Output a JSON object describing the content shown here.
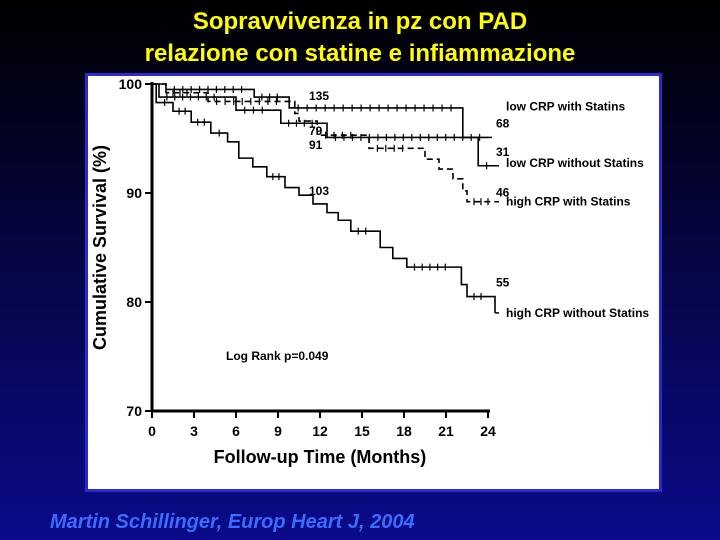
{
  "slide": {
    "title_line1": "Sopravvivenza in pz con PAD",
    "title_line2": "relazione con statine e infiammazione",
    "citation": "Martin Schillinger, Europ Heart J, 2004"
  },
  "colors": {
    "title": "#ffff00",
    "citation": "#3a6cff",
    "panel_border": "#2a2acf"
  },
  "chart_data": {
    "type": "line",
    "title": "",
    "xlabel": "Follow-up Time (Months)",
    "ylabel": "Cumulative Survival (%)",
    "xlim": [
      0,
      24
    ],
    "ylim": [
      70,
      100
    ],
    "xticks": [
      0,
      3,
      6,
      9,
      12,
      15,
      18,
      21,
      24
    ],
    "yticks": [
      70,
      80,
      90,
      100
    ],
    "annotation": "Log Rank p=0.049",
    "series": [
      {
        "name": "low CRP with Statins",
        "style": "solid",
        "at_risk_labels": [
          {
            "x": 12,
            "text": "135"
          },
          {
            "x": 24,
            "text": "68"
          }
        ],
        "points": [
          [
            0,
            100
          ],
          [
            1,
            99.5
          ],
          [
            7,
            99.5
          ],
          [
            7.3,
            98.8
          ],
          [
            9.5,
            98.8
          ],
          [
            9.8,
            97.8
          ],
          [
            22,
            97.8
          ],
          [
            22.2,
            95.1
          ],
          [
            24,
            95.1
          ]
        ]
      },
      {
        "name": "low CRP without Statins",
        "style": "solid",
        "at_risk_labels": [
          {
            "x": 12,
            "text": "79"
          },
          {
            "x": 24,
            "text": "31"
          }
        ],
        "points": [
          [
            0,
            100
          ],
          [
            0.5,
            98.8
          ],
          [
            5,
            98.8
          ],
          [
            6,
            97.6
          ],
          [
            8.5,
            97.6
          ],
          [
            9.2,
            96.4
          ],
          [
            12,
            96.4
          ],
          [
            12.5,
            95.1
          ],
          [
            22.8,
            95.1
          ],
          [
            23.3,
            92.5
          ],
          [
            24.5,
            92.5
          ]
        ]
      },
      {
        "name": "high CRP with Statins",
        "style": "dashed",
        "at_risk_labels": [
          {
            "x": 12,
            "text": "91"
          },
          {
            "x": 24,
            "text": "46"
          }
        ],
        "points": [
          [
            0,
            100
          ],
          [
            1,
            99.2
          ],
          [
            3,
            99.2
          ],
          [
            4,
            98.4
          ],
          [
            9.5,
            98.4
          ],
          [
            10.2,
            97.3
          ],
          [
            10.5,
            96.6
          ],
          [
            11.5,
            96.6
          ],
          [
            11.8,
            95.3
          ],
          [
            14.8,
            95.3
          ],
          [
            15.5,
            94.1
          ],
          [
            18.5,
            94.1
          ],
          [
            19.5,
            93.1
          ],
          [
            20.5,
            92.2
          ],
          [
            21.5,
            91.3
          ],
          [
            22.2,
            90.2
          ],
          [
            22.5,
            89.2
          ],
          [
            24.5,
            89.2
          ]
        ]
      },
      {
        "name": "high CRP without Statins",
        "style": "solid",
        "at_risk_labels": [
          {
            "x": 12,
            "text": "103"
          },
          {
            "x": 24,
            "text": "55"
          }
        ],
        "points": [
          [
            0,
            100
          ],
          [
            0.3,
            98.3
          ],
          [
            1.5,
            97.5
          ],
          [
            2.8,
            96.5
          ],
          [
            4.2,
            95.5
          ],
          [
            5.4,
            94.7
          ],
          [
            6.2,
            93.2
          ],
          [
            7.2,
            92.4
          ],
          [
            8.2,
            91.5
          ],
          [
            9.5,
            90.5
          ],
          [
            10.5,
            89.8
          ],
          [
            11.5,
            89
          ],
          [
            12.5,
            88.2
          ],
          [
            13.3,
            87.5
          ],
          [
            14.2,
            86.5
          ],
          [
            15.8,
            86.5
          ],
          [
            16.3,
            85
          ],
          [
            17.2,
            84
          ],
          [
            18.2,
            83.2
          ],
          [
            21.5,
            83.2
          ],
          [
            22.1,
            81.6
          ],
          [
            22.5,
            80.5
          ],
          [
            24,
            80.5
          ],
          [
            24.5,
            79
          ]
        ]
      }
    ]
  }
}
